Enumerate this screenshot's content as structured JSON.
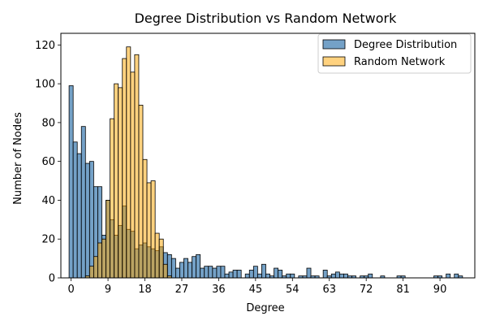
{
  "chart_data": {
    "type": "bar",
    "title": "Degree Distribution vs Random Network",
    "xlabel": "Degree",
    "ylabel": "Number of Nodes",
    "xlim": [
      -2.5,
      98.5
    ],
    "ylim": [
      0,
      126
    ],
    "xticks": [
      0,
      9,
      18,
      27,
      36,
      45,
      54,
      63,
      72,
      81,
      90
    ],
    "yticks": [
      0,
      20,
      40,
      60,
      80,
      100,
      120
    ],
    "bin_width": 1,
    "legend_position": "top-right",
    "series": [
      {
        "name": "Degree Distribution",
        "color": "#4682b4",
        "fill_opacity": 0.75,
        "x": [
          0,
          1,
          2,
          3,
          4,
          5,
          6,
          7,
          8,
          9,
          10,
          11,
          12,
          13,
          14,
          15,
          16,
          17,
          18,
          19,
          20,
          21,
          22,
          23,
          24,
          25,
          26,
          27,
          28,
          29,
          30,
          31,
          32,
          33,
          34,
          35,
          36,
          37,
          38,
          39,
          40,
          41,
          42,
          43,
          44,
          45,
          46,
          47,
          48,
          49,
          50,
          51,
          52,
          53,
          54,
          55,
          56,
          57,
          58,
          59,
          60,
          61,
          62,
          63,
          64,
          65,
          66,
          67,
          68,
          69,
          70,
          71,
          72,
          73,
          74,
          75,
          76,
          77,
          78,
          79,
          80,
          81,
          82,
          83,
          84,
          85,
          86,
          87,
          88,
          89,
          90,
          91,
          92,
          93,
          94,
          95
        ],
        "values": [
          99,
          70,
          64,
          78,
          59,
          60,
          47,
          47,
          22,
          40,
          30,
          22,
          27,
          37,
          25,
          24,
          15,
          17,
          18,
          16,
          15,
          14,
          16,
          13,
          12,
          10,
          5,
          8,
          10,
          8,
          11,
          12,
          5,
          6,
          6,
          5,
          6,
          6,
          2,
          3,
          4,
          4,
          0,
          2,
          4,
          6,
          2,
          7,
          2,
          1,
          5,
          4,
          1,
          2,
          2,
          0,
          1,
          1,
          5,
          1,
          1,
          0,
          4,
          1,
          2,
          3,
          2,
          2,
          1,
          1,
          0,
          1,
          1,
          2,
          0,
          0,
          1,
          0,
          0,
          0,
          1,
          1,
          0,
          0,
          0,
          0,
          0,
          0,
          0,
          1,
          1,
          0,
          2,
          0,
          2,
          1
        ]
      },
      {
        "name": "Random Network",
        "color": "#ffa500",
        "fill_opacity": 0.5,
        "x": [
          4,
          5,
          6,
          7,
          8,
          9,
          10,
          11,
          12,
          13,
          14,
          15,
          16,
          17,
          18,
          19,
          20,
          21,
          22,
          23,
          24
        ],
        "values": [
          1,
          6,
          11,
          18,
          20,
          40,
          82,
          100,
          98,
          113,
          119,
          106,
          115,
          89,
          61,
          49,
          50,
          23,
          20,
          7,
          1
        ]
      }
    ]
  }
}
